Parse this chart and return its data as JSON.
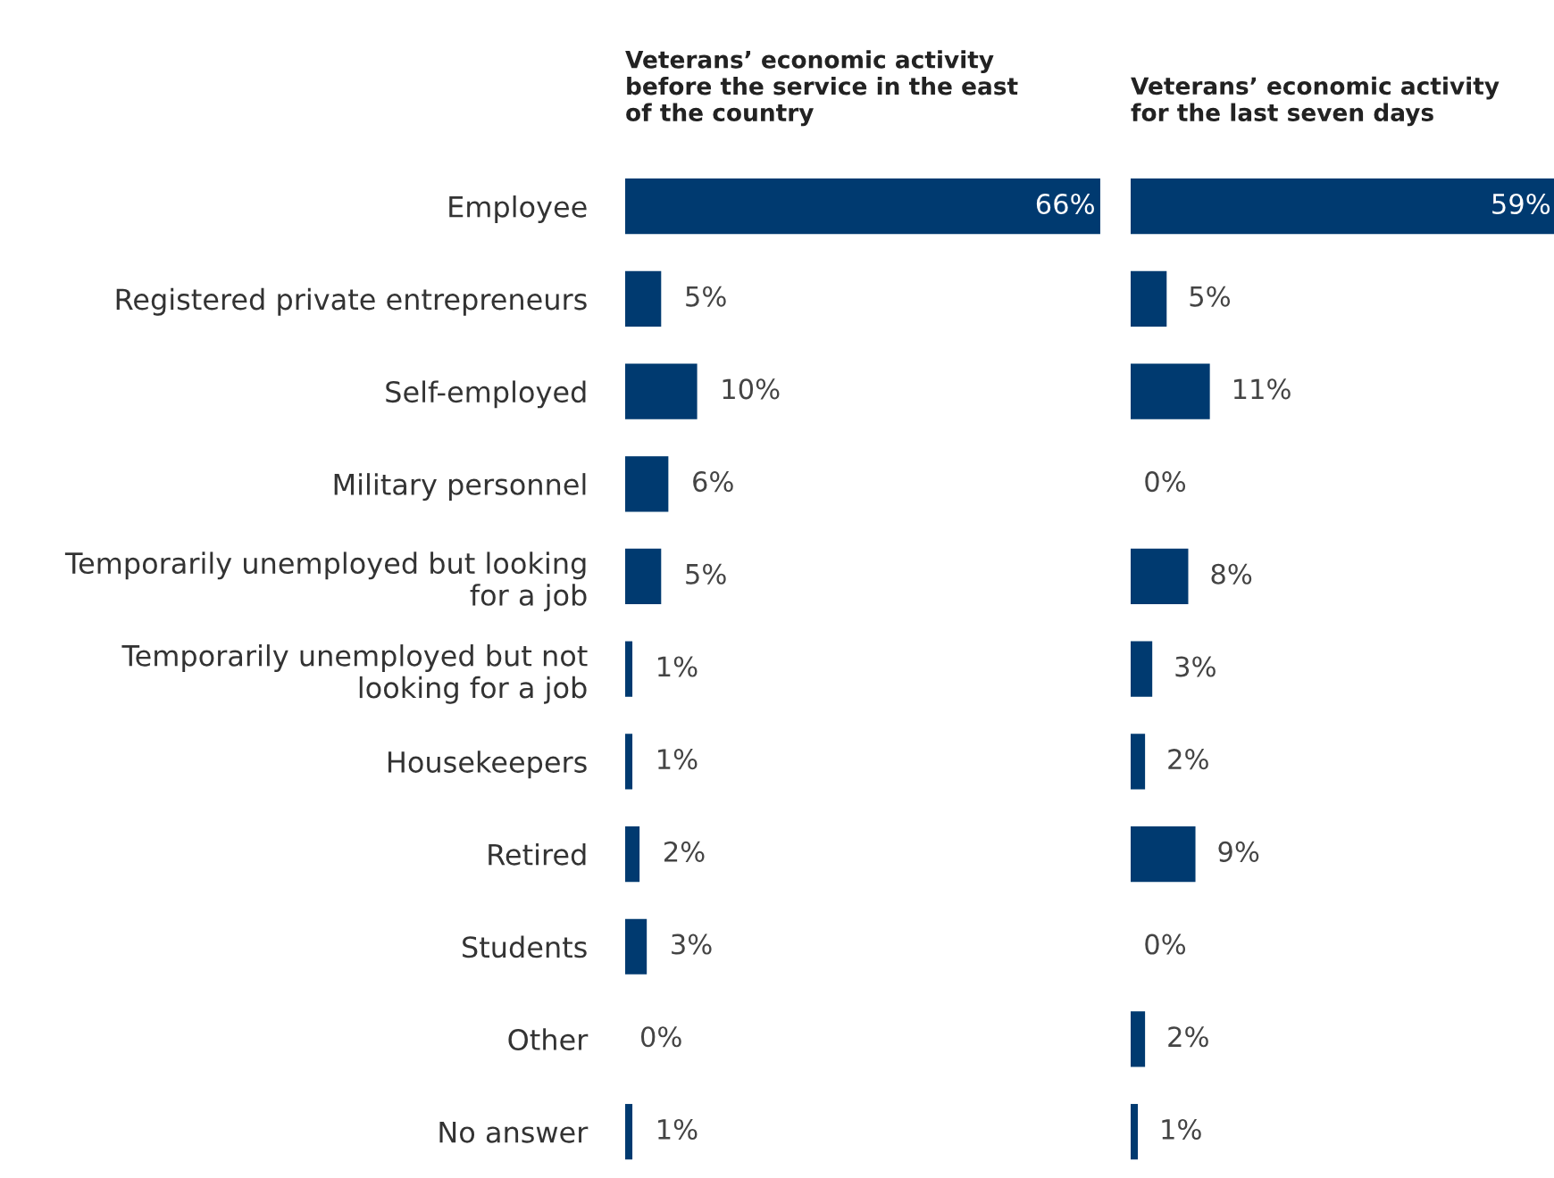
{
  "chart_data": [
    {
      "type": "bar",
      "orientation": "horizontal",
      "title": "Veterans’ economic activity\nbefore the service in the east\nof the country",
      "categories": [
        "Employee",
        "Registered private entrepreneurs",
        "Self-employed",
        "Military personnel",
        "Temporarily unemployed but looking\nfor a job",
        "Temporarily unemployed but not\nlooking for a job",
        "Housekeepers",
        "Retired",
        "Students",
        "Other",
        "No answer"
      ],
      "values": [
        66,
        5,
        10,
        6,
        5,
        1,
        1,
        2,
        3,
        0,
        1
      ],
      "value_labels": [
        "66%",
        "5%",
        "10%",
        "6%",
        "5%",
        "1%",
        "1%",
        "2%",
        "3%",
        "0%",
        "1%"
      ],
      "color": "#003a70",
      "xlim": [
        0,
        66
      ],
      "tick_labels": "y"
    },
    {
      "type": "bar",
      "orientation": "horizontal",
      "title": "Veterans’ economic activity\nfor the last seven days",
      "categories": [
        null,
        null,
        null,
        null,
        null,
        null,
        null,
        null,
        null,
        null,
        null
      ],
      "values": [
        59,
        5,
        11,
        0,
        8,
        3,
        2,
        9,
        0,
        2,
        1
      ],
      "value_labels": [
        "59%",
        "5%",
        "11%",
        "0%",
        "8%",
        "3%",
        "2%",
        "9%",
        "0%",
        "2%",
        "1%"
      ],
      "color": "#003a70",
      "xlim": [
        0,
        59
      ],
      "tick_labels": false
    }
  ]
}
